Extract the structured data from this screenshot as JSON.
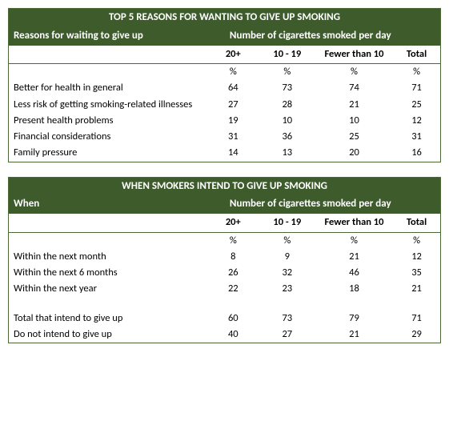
{
  "table1": {
    "title": "TOP 5 REASONS FOR WANTING TO GIVE UP SMOKING",
    "left_sub": "Reasons for waiting to give up",
    "right_sub": "Number of cigarettes smoked per day",
    "columns": [
      "20+",
      "10 - 19",
      "Fewer than 10",
      "Total"
    ],
    "pct_label": "%",
    "rows": [
      {
        "label": "Better for health in general",
        "v": [
          "64",
          "73",
          "74",
          "71"
        ]
      },
      {
        "label": "Less risk of getting smoking-related illnesses",
        "v": [
          "27",
          "28",
          "21",
          "25"
        ]
      },
      {
        "label": "Present health problems",
        "v": [
          "19",
          "10",
          "10",
          "12"
        ]
      },
      {
        "label": "Financial considerations",
        "v": [
          "31",
          "36",
          "25",
          "31"
        ]
      },
      {
        "label": "Family pressure",
        "v": [
          "14",
          "13",
          "20",
          "16"
        ]
      }
    ]
  },
  "table2": {
    "title": "WHEN SMOKERS INTEND TO GIVE UP SMOKING",
    "left_sub": "When",
    "right_sub": "Number of cigarettes smoked per day",
    "columns": [
      "20+",
      "10 - 19",
      "Fewer than 10",
      "Total"
    ],
    "pct_label": "%",
    "rows": [
      {
        "label": "Within the next month",
        "v": [
          "8",
          "9",
          "21",
          "12"
        ]
      },
      {
        "label": "Within the next 6 months",
        "v": [
          "26",
          "32",
          "46",
          "35"
        ]
      },
      {
        "label": "Within the next year",
        "v": [
          "22",
          "23",
          "18",
          "21"
        ]
      }
    ],
    "rows2": [
      {
        "label": "Total that intend to give up",
        "v": [
          "60",
          "73",
          "79",
          "71"
        ]
      },
      {
        "label": "Do not intend to give up",
        "v": [
          "40",
          "27",
          "21",
          "29"
        ]
      }
    ]
  },
  "style": {
    "header_bg": "#3e5b2c",
    "header_color": "#ffffff",
    "border_color": "#4a6936",
    "background": "#ffffff",
    "font_family": "Calibri, Arial, sans-serif"
  }
}
